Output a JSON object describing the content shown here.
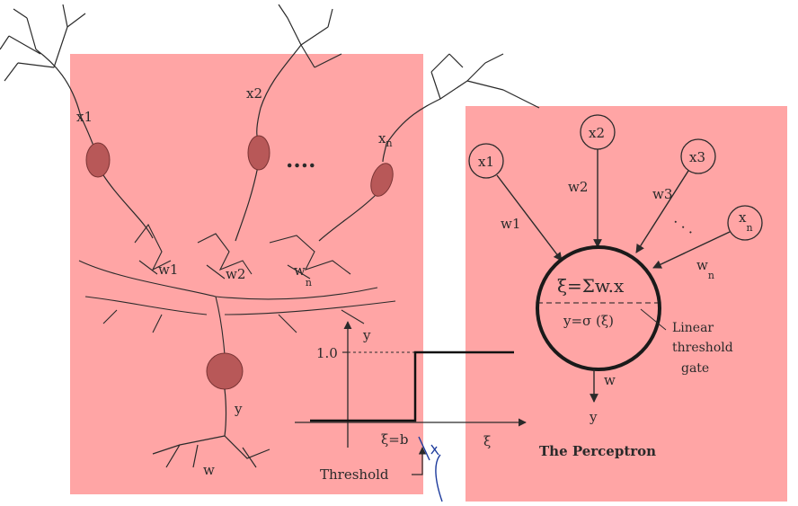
{
  "colors": {
    "panel_fill": "#ffa5a5",
    "ink": "#2a2a2a",
    "neuron_body": "#b85858",
    "annotation": "#1c3a9c"
  },
  "neuron": {
    "input_labels": [
      "x1",
      "x2"
    ],
    "input_n_base": "x",
    "input_n_sub": "n",
    "dots": "....",
    "weight_labels": [
      "w1",
      "w2"
    ],
    "weight_n_base": "w",
    "weight_n_sub": "n",
    "output_label": "y",
    "axon_weight_label": "w"
  },
  "threshold_plot": {
    "y_axis_label": "y",
    "x_axis_label": "ξ",
    "level_label": "1.0",
    "threshold_tick_label": "ξ=b",
    "threshold_caption": "Threshold",
    "step_low": 0.0,
    "step_high": 1.0
  },
  "perceptron": {
    "inputs": [
      "x1",
      "x2",
      "x3"
    ],
    "input_n_base": "x",
    "input_n_sub": "n",
    "weights": [
      "w1",
      "w2",
      "w3"
    ],
    "weight_n_base": "w",
    "weight_n_sub": "n",
    "sum_formula": "ξ=Σw.x",
    "activation_formula": "y=σ (ξ)",
    "gate_label_lines": [
      "Linear",
      "threshold",
      "gate"
    ],
    "output_weight": "w",
    "output_label": "y",
    "caption": "The Perceptron"
  }
}
